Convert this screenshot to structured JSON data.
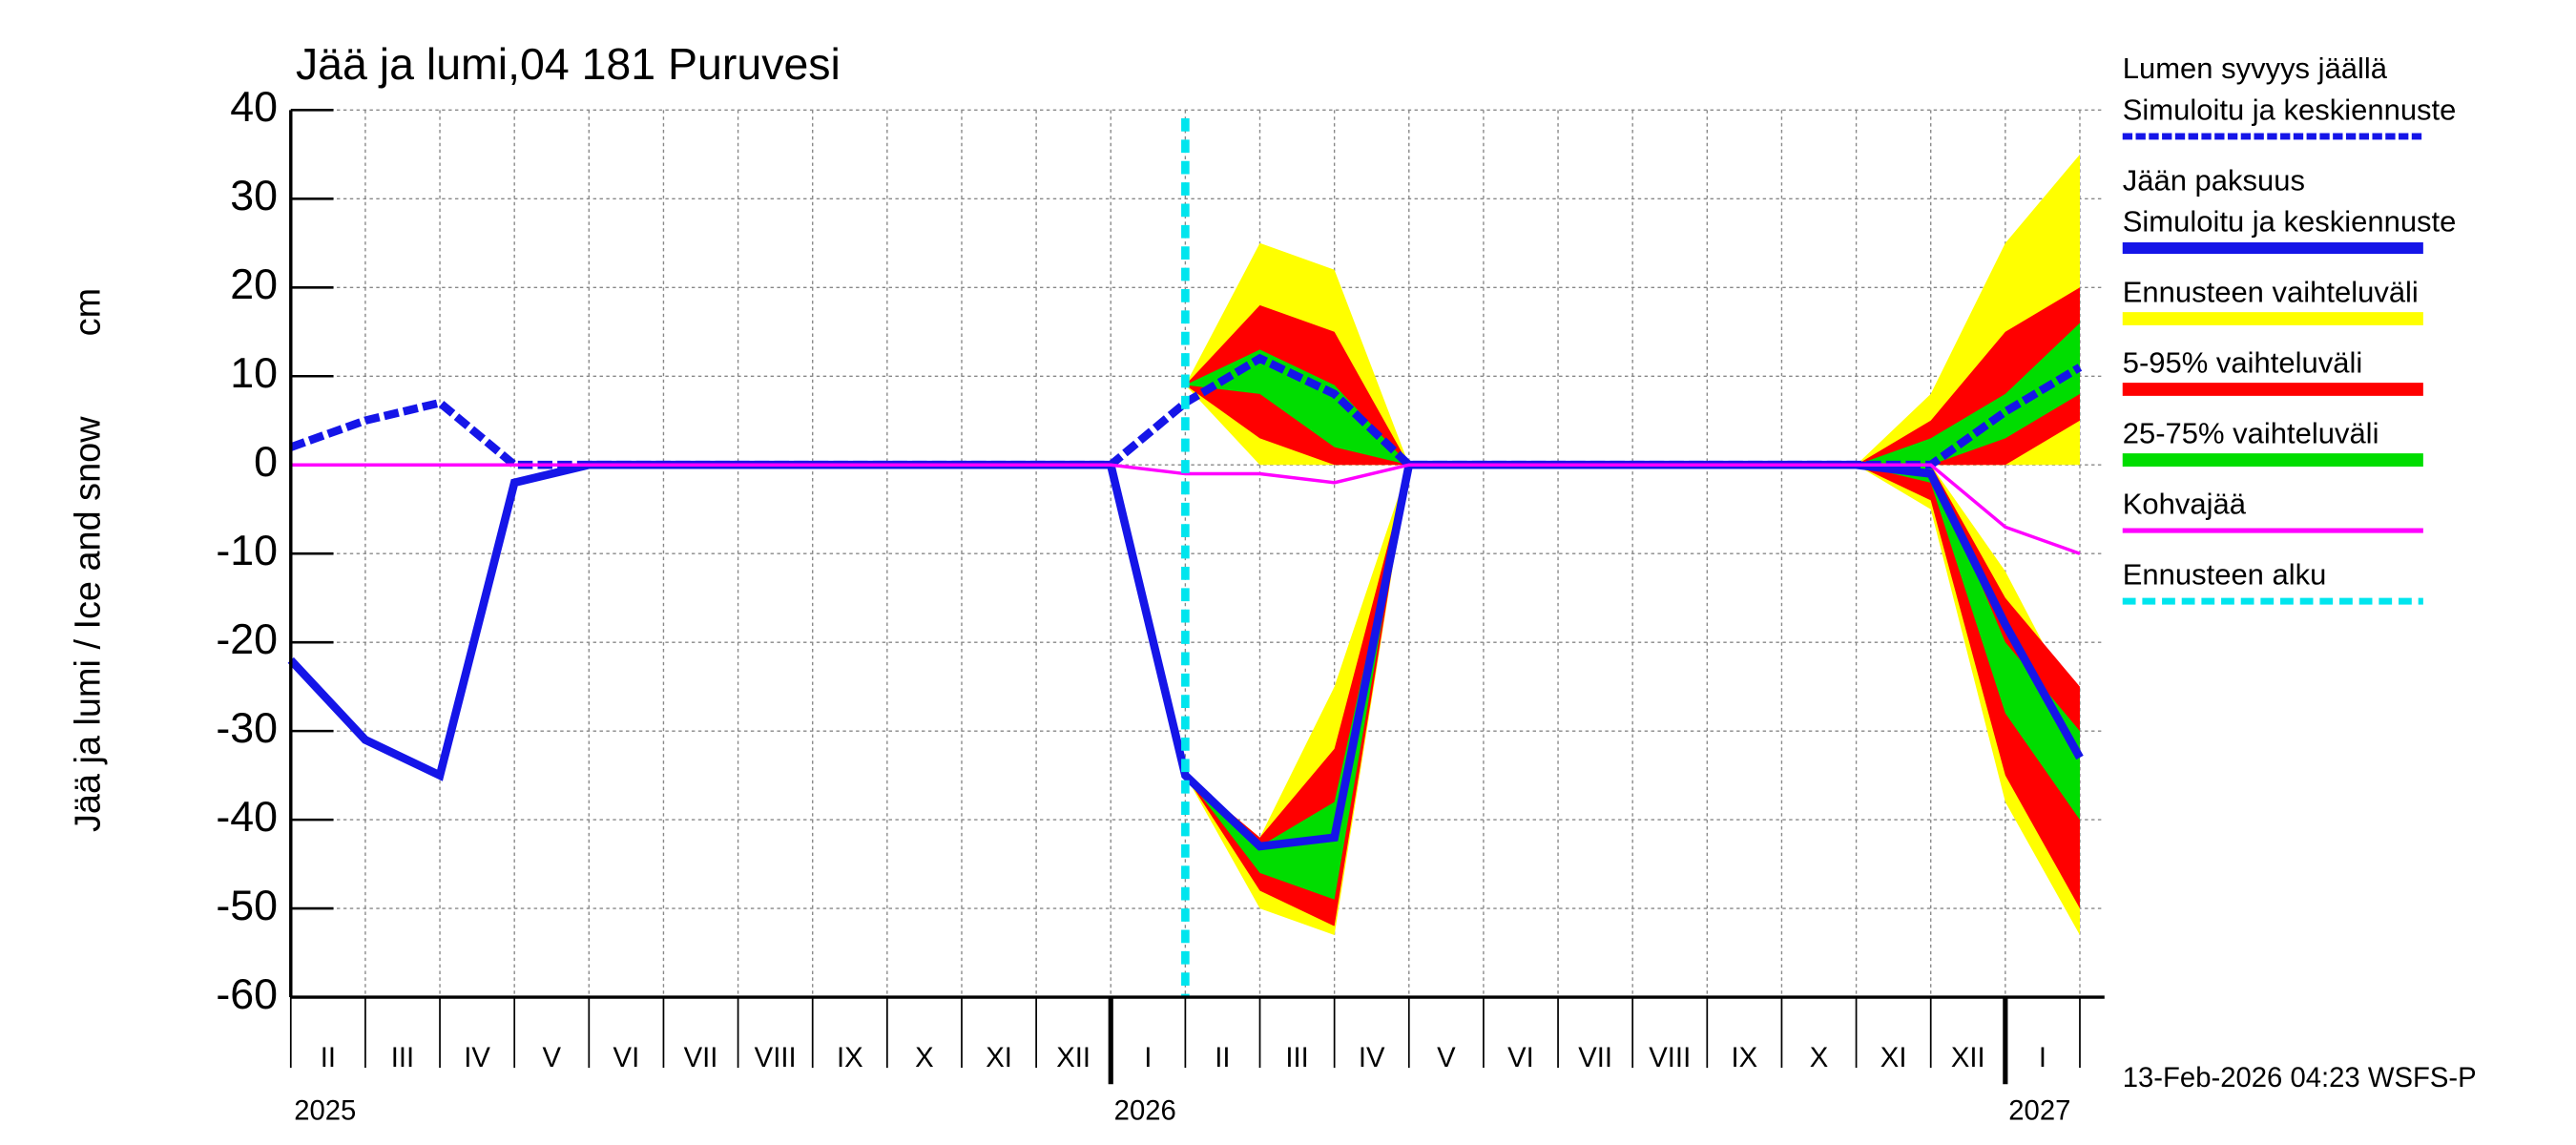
{
  "chart_data": {
    "type": "ice-snow",
    "title": "Jää ja lumi,04 181 Puruvesi",
    "ylabel": "Jää ja lumi / Ice and snow",
    "y_unit": "cm",
    "footer": "13-Feb-2026 04:23 WSFS-P",
    "ylim": [
      -60,
      40
    ],
    "yticks": [
      40,
      30,
      20,
      10,
      0,
      -10,
      -20,
      -30,
      -40,
      -50,
      -60
    ],
    "grid": true,
    "xlim": [
      "2025-02",
      "2027-02"
    ],
    "month_labels": [
      "II",
      "III",
      "IV",
      "V",
      "VI",
      "VII",
      "VIII",
      "IX",
      "X",
      "XI",
      "XII",
      "I",
      "II",
      "III",
      "IV",
      "V",
      "VI",
      "VII",
      "VIII",
      "IX",
      "X",
      "XI",
      "XII",
      "I"
    ],
    "years": [
      "2025",
      "2026",
      "2027"
    ],
    "x": [
      "2025-02",
      "2025-03",
      "2025-04",
      "2025-05",
      "2025-06",
      "2025-07",
      "2025-08",
      "2025-09",
      "2025-10",
      "2025-11",
      "2025-12",
      "2026-01",
      "2026-02",
      "2026-03",
      "2026-04",
      "2026-05",
      "2026-06",
      "2026-07",
      "2026-08",
      "2026-09",
      "2026-10",
      "2026-11",
      "2026-12",
      "2027-01",
      "2027-02"
    ],
    "bands": [
      {
        "name": "Ennusteen vaihteluväli",
        "color": "#ffff00",
        "snow_high": [
          null,
          null,
          null,
          null,
          null,
          null,
          null,
          null,
          null,
          null,
          null,
          null,
          9,
          25,
          22,
          0,
          null,
          null,
          null,
          null,
          null,
          0,
          8,
          25,
          35
        ],
        "snow_low": [
          null,
          null,
          null,
          null,
          null,
          null,
          null,
          null,
          null,
          null,
          null,
          null,
          9,
          0,
          0,
          0,
          null,
          null,
          null,
          null,
          null,
          0,
          0,
          0,
          0
        ],
        "ice_high": [
          null,
          null,
          null,
          null,
          null,
          null,
          null,
          null,
          null,
          null,
          null,
          null,
          -35,
          -42,
          -25,
          0,
          null,
          null,
          null,
          null,
          null,
          0,
          0,
          -12,
          -28
        ],
        "ice_low": [
          null,
          null,
          null,
          null,
          null,
          null,
          null,
          null,
          null,
          null,
          null,
          null,
          -35,
          -50,
          -53,
          0,
          null,
          null,
          null,
          null,
          null,
          0,
          -5,
          -38,
          -53
        ]
      },
      {
        "name": "5-95% vaihteluväli",
        "color": "#ff0000",
        "snow_high": [
          null,
          null,
          null,
          null,
          null,
          null,
          null,
          null,
          null,
          null,
          null,
          null,
          9,
          18,
          15,
          0,
          null,
          null,
          null,
          null,
          null,
          0,
          5,
          15,
          20
        ],
        "snow_low": [
          null,
          null,
          null,
          null,
          null,
          null,
          null,
          null,
          null,
          null,
          null,
          null,
          9,
          3,
          0,
          0,
          null,
          null,
          null,
          null,
          null,
          0,
          0,
          0,
          5
        ],
        "ice_high": [
          null,
          null,
          null,
          null,
          null,
          null,
          null,
          null,
          null,
          null,
          null,
          null,
          -35,
          -42,
          -32,
          0,
          null,
          null,
          null,
          null,
          null,
          0,
          0,
          -15,
          -25
        ],
        "ice_low": [
          null,
          null,
          null,
          null,
          null,
          null,
          null,
          null,
          null,
          null,
          null,
          null,
          -35,
          -48,
          -52,
          0,
          null,
          null,
          null,
          null,
          null,
          0,
          -4,
          -35,
          -50
        ]
      },
      {
        "name": "25-75% vaihteluväli",
        "color": "#00dd00",
        "snow_high": [
          null,
          null,
          null,
          null,
          null,
          null,
          null,
          null,
          null,
          null,
          null,
          null,
          9,
          13,
          9,
          0,
          null,
          null,
          null,
          null,
          null,
          0,
          3,
          8,
          16
        ],
        "snow_low": [
          null,
          null,
          null,
          null,
          null,
          null,
          null,
          null,
          null,
          null,
          null,
          null,
          9,
          8,
          2,
          0,
          null,
          null,
          null,
          null,
          null,
          0,
          0,
          3,
          8
        ],
        "ice_high": [
          null,
          null,
          null,
          null,
          null,
          null,
          null,
          null,
          null,
          null,
          null,
          null,
          -35,
          -43,
          -38,
          0,
          null,
          null,
          null,
          null,
          null,
          0,
          0,
          -20,
          -30
        ],
        "ice_low": [
          null,
          null,
          null,
          null,
          null,
          null,
          null,
          null,
          null,
          null,
          null,
          null,
          -35,
          -46,
          -49,
          0,
          null,
          null,
          null,
          null,
          null,
          0,
          -2,
          -28,
          -40
        ]
      }
    ],
    "series": [
      {
        "name": "Lumen syvyys jäällä",
        "subtitle": "Simuloitu ja keskiennuste",
        "color": "#1515e8",
        "dashed": true,
        "values": [
          2,
          5,
          7,
          0,
          0,
          0,
          0,
          0,
          0,
          0,
          0,
          0,
          7,
          12,
          8,
          0,
          0,
          0,
          0,
          0,
          0,
          0,
          0,
          6,
          11
        ]
      },
      {
        "name": "Jään paksuus",
        "subtitle": "Simuloitu ja keskiennuste",
        "color": "#1515e8",
        "dashed": false,
        "values": [
          -22,
          -31,
          -35,
          -2,
          0,
          0,
          0,
          0,
          0,
          0,
          0,
          0,
          -35,
          -43,
          -42,
          0,
          0,
          0,
          0,
          0,
          0,
          0,
          -1,
          -18,
          -33
        ]
      },
      {
        "name": "Kohvajää",
        "color": "#ff00ff",
        "dashed": false,
        "thin": true,
        "values": [
          0,
          0,
          0,
          0,
          0,
          0,
          0,
          0,
          0,
          0,
          0,
          0,
          -1,
          -1,
          -2,
          0,
          0,
          0,
          0,
          0,
          0,
          0,
          0,
          -7,
          -10
        ]
      }
    ],
    "forecast_start": {
      "name": "Ennusteen alku",
      "x": "2026-02",
      "color": "#00e5ee"
    }
  }
}
